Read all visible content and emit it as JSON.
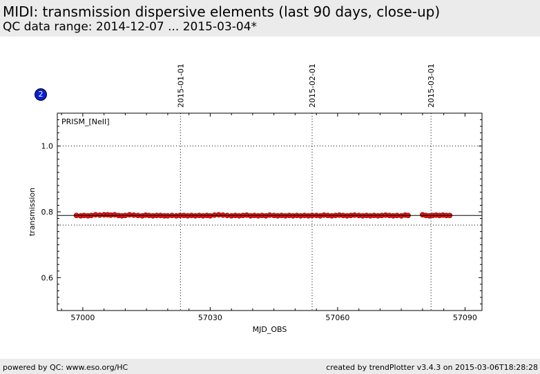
{
  "header": {
    "title": "MIDI: transmission dispersive elements (last 90 days, close-up)",
    "subtitle": "QC data range: 2014-12-07 ... 2015-03-04*"
  },
  "badge": {
    "label": "2",
    "color": "#0a1fd6"
  },
  "footer": {
    "left": "powered by QC: www.eso.org/HC",
    "right": "created by trendPlotter v3.4.3 on 2015-03-06T18:28:28"
  },
  "chart_data": {
    "type": "scatter",
    "panel_label": "PRISM_[NeII]",
    "xlabel": "MJD_OBS",
    "ylabel": "transmission",
    "xlim": [
      56994,
      57094
    ],
    "ylim": [
      0.5,
      1.1
    ],
    "xticks": [
      57000,
      57030,
      57060,
      57090
    ],
    "xtick_labels": [
      "57000",
      "57030",
      "57060",
      "57090"
    ],
    "yticks": [
      0.6,
      0.8,
      1.0
    ],
    "ytick_labels": [
      "0.6",
      "0.8",
      "1.0"
    ],
    "date_markers": [
      {
        "label": "2015-01-01",
        "x": 57023.0
      },
      {
        "label": "2015-02-01",
        "x": 57054.0
      },
      {
        "label": "2015-03-01",
        "x": 57082.0
      }
    ],
    "reference_lines": {
      "mean": 0.789,
      "upper": 1.0,
      "lower": 0.76
    },
    "marker_color": "#e01010",
    "series": [
      {
        "x": [
          56998.5,
          56999.5,
          57000.3,
          57001.2,
          57002.0,
          57003.0,
          57004.0,
          57005.0,
          57005.8,
          57006.6,
          57007.5,
          57008.4,
          57009.2,
          57010.0,
          57011.0,
          57012.0,
          57013.0,
          57014.0,
          57014.8,
          57015.6,
          57016.5,
          57017.4,
          57018.3,
          57019.2,
          57020.0,
          57021.0,
          57022.0,
          57022.9,
          57023.8,
          57024.7,
          57025.6,
          57026.5,
          57027.4,
          57028.3,
          57029.2,
          57030.0,
          57031.0,
          57032.0,
          57033.0,
          57034.0,
          57035.0,
          57035.9,
          57036.8,
          57037.7,
          57038.6,
          57039.5,
          57040.4,
          57041.3,
          57042.2,
          57043.1,
          57044.0,
          57045.0,
          57045.9,
          57046.8,
          57047.7,
          57048.6,
          57049.5,
          57050.4,
          57051.3,
          57052.2,
          57053.1,
          57054.0,
          57055.0,
          57055.9,
          57056.8,
          57057.7,
          57058.6,
          57059.5,
          57060.4,
          57061.3,
          57062.2,
          57063.1,
          57064.0,
          57065.0,
          57065.9,
          57066.8,
          57067.7,
          57068.6,
          57069.5,
          57070.4,
          57071.3,
          57072.2,
          57073.1,
          57074.0,
          57075.0,
          57075.9,
          57076.6,
          57080.0,
          57080.8,
          57081.6,
          57082.4,
          57083.2,
          57084.0,
          57084.8,
          57085.6,
          57086.4
        ],
        "y": [
          0.789,
          0.788,
          0.789,
          0.788,
          0.789,
          0.791,
          0.79,
          0.791,
          0.791,
          0.79,
          0.791,
          0.789,
          0.788,
          0.789,
          0.791,
          0.79,
          0.789,
          0.788,
          0.79,
          0.789,
          0.788,
          0.789,
          0.789,
          0.788,
          0.788,
          0.789,
          0.788,
          0.789,
          0.789,
          0.788,
          0.789,
          0.788,
          0.789,
          0.788,
          0.789,
          0.788,
          0.79,
          0.791,
          0.79,
          0.789,
          0.788,
          0.789,
          0.788,
          0.789,
          0.79,
          0.788,
          0.789,
          0.788,
          0.789,
          0.788,
          0.79,
          0.789,
          0.788,
          0.789,
          0.788,
          0.789,
          0.788,
          0.789,
          0.788,
          0.789,
          0.788,
          0.789,
          0.789,
          0.788,
          0.79,
          0.789,
          0.788,
          0.789,
          0.79,
          0.789,
          0.788,
          0.789,
          0.79,
          0.789,
          0.788,
          0.789,
          0.788,
          0.789,
          0.788,
          0.789,
          0.79,
          0.789,
          0.788,
          0.789,
          0.788,
          0.79,
          0.789,
          0.791,
          0.789,
          0.788,
          0.789,
          0.79,
          0.789,
          0.79,
          0.789,
          0.789
        ]
      }
    ]
  }
}
